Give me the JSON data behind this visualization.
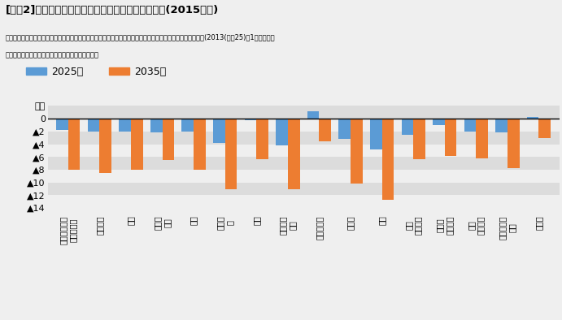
{
  "title": "[図表2]物販・外食・サービス支出の増減率の見通し(2015年比)",
  "subtitle1": "出所：総務省「全国消費実態調査」、国立社会保障・人口問題研究所「日本の世帯数の将来推計（全国推計）(2013(平成25)年1月推計）」",
  "subtitle2": "「人口統計資料集」を基にニッセイ基礎研究所作成",
  "legend_2025": "2025年",
  "legend_2035": "2035年",
  "categories": [
    "物販・外食・\nサービス計",
    "物販小計",
    "食料",
    "家具・\n寝具",
    "家電",
    "被服・\n靴",
    "書籍",
    "教養娯楽\n用品",
    "医薬品関連",
    "日用品",
    "外食",
    "旅行\nサービス",
    "理美容\nサービス",
    "医療\nサービス",
    "観覧・入場\n料等",
    "交際費"
  ],
  "values_2025": [
    -1.8,
    -2.0,
    -2.0,
    -2.2,
    -2.0,
    -3.8,
    -0.3,
    -4.2,
    1.2,
    -3.2,
    -4.8,
    -2.5,
    -1.0,
    -2.0,
    -2.2,
    0.3
  ],
  "values_2035": [
    -8.0,
    -8.5,
    -8.0,
    -6.5,
    -8.0,
    -11.0,
    -6.3,
    -11.0,
    -3.5,
    -10.2,
    -12.7,
    -6.3,
    -5.9,
    -6.2,
    -7.8,
    -3.0
  ],
  "color_2025": "#5b9bd5",
  "color_2035": "#ed7d31",
  "ylim_min": -15.0,
  "ylim_max": 2.8,
  "yticks": [
    2,
    0,
    -2,
    -4,
    -6,
    -8,
    -10,
    -12,
    -14
  ],
  "bg_light": "#efefef",
  "bg_dark": "#dcdcdc",
  "bar_width": 0.38
}
